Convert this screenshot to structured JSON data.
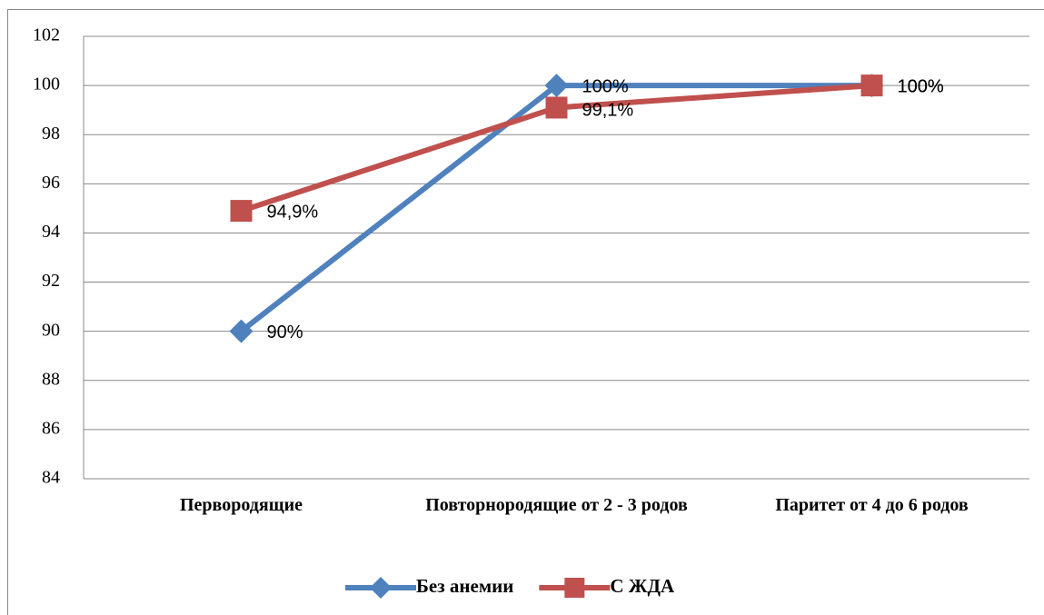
{
  "chart_data": {
    "type": "line",
    "categories": [
      "Первородящие",
      "Повторнородящие от 2 - 3 родов",
      "Паритет от 4 до 6 родов"
    ],
    "series": [
      {
        "name": "Без анемии",
        "color": "#4f81bd",
        "marker": "diamond",
        "values": [
          90,
          100,
          100
        ],
        "value_labels": [
          "90%",
          "100%",
          "100%"
        ]
      },
      {
        "name": "С ЖДА",
        "color": "#c0504d",
        "marker": "square",
        "values": [
          94.9,
          99.1,
          100
        ],
        "value_labels": [
          "94,9%",
          "99,1%",
          "100%"
        ]
      }
    ],
    "ylim": [
      84,
      102
    ],
    "yticks": [
      84,
      86,
      88,
      90,
      92,
      94,
      96,
      98,
      100,
      102
    ],
    "grid": true,
    "legend": "bottom"
  }
}
